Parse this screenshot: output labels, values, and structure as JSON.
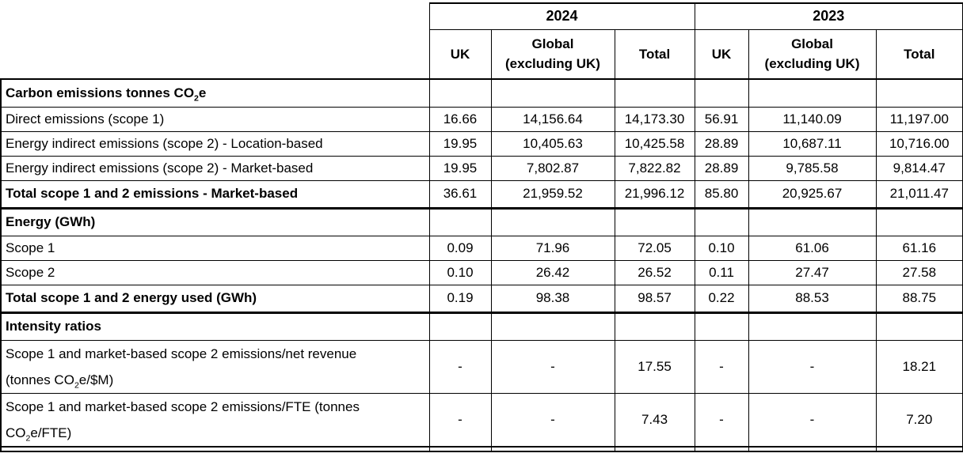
{
  "chart_data": {
    "type": "table",
    "year_groups": [
      {
        "label": "2024",
        "span": 3
      },
      {
        "label": "2023",
        "span": 3
      }
    ],
    "sub_columns": [
      "UK",
      "Global\n(excluding UK)",
      "Total",
      "UK",
      "Global\n(excluding UK)",
      "Total"
    ],
    "sections": [
      {
        "title": "Carbon emissions tonnes CO₂e",
        "rows": [
          {
            "label": "Direct emissions (scope 1)",
            "bold": false,
            "values": [
              "16.66",
              "14,156.64",
              "14,173.30",
              "56.91",
              "11,140.09",
              "11,197.00"
            ]
          },
          {
            "label": "Energy indirect emissions (scope 2) - Location-based",
            "bold": false,
            "values": [
              "19.95",
              "10,405.63",
              "10,425.58",
              "28.89",
              "10,687.11",
              "10,716.00"
            ]
          },
          {
            "label": "Energy indirect emissions (scope 2) - Market-based",
            "bold": false,
            "values": [
              "19.95",
              "7,802.87",
              "7,822.82",
              "28.89",
              "9,785.58",
              "9,814.47"
            ]
          },
          {
            "label": "Total scope 1 and 2 emissions - Market-based",
            "bold": true,
            "thick_bottom": true,
            "values": [
              "36.61",
              "21,959.52",
              "21,996.12",
              "85.80",
              "20,925.67",
              "21,011.47"
            ]
          }
        ]
      },
      {
        "title": "Energy (GWh)",
        "rows": [
          {
            "label": "Scope 1",
            "bold": false,
            "values": [
              "0.09",
              "71.96",
              "72.05",
              "0.10",
              "61.06",
              "61.16"
            ]
          },
          {
            "label": "Scope 2",
            "bold": false,
            "values": [
              "0.10",
              "26.42",
              "26.52",
              "0.11",
              "27.47",
              "27.58"
            ]
          },
          {
            "label": "Total scope 1 and 2 energy used (GWh)",
            "bold": true,
            "thick_bottom": true,
            "values": [
              "0.19",
              "98.38",
              "98.57",
              "0.22",
              "88.53",
              "88.75"
            ]
          }
        ]
      },
      {
        "title": "Intensity ratios",
        "rows": [
          {
            "label": "Scope 1 and market-based scope 2 emissions/net revenue\n(tonnes CO₂e/$M)",
            "bold": false,
            "tall": true,
            "values": [
              "-",
              "-",
              "17.55",
              "-",
              "-",
              "18.21"
            ]
          },
          {
            "label": "Scope 1 and market-based scope 2 emissions/FTE (tonnes\nCO₂e/FTE)",
            "bold": false,
            "tall": true,
            "thick_bottom": true,
            "values": [
              "-",
              "-",
              "7.43",
              "-",
              "-",
              "7.20"
            ]
          }
        ]
      }
    ],
    "colors": {
      "border": "#000000",
      "text": "#000000",
      "background": "#ffffff"
    }
  }
}
